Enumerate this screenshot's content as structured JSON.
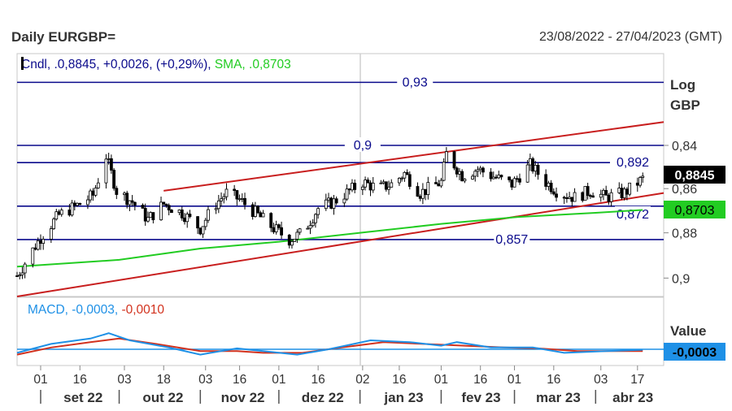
{
  "header": {
    "title": "Daily EURGBP=",
    "date_range": "23/08/2022 - 27/04/2023 (GMT)"
  },
  "price_panel": {
    "legend": {
      "cndl": "Cndl, .0,8845, ",
      "change": "+0,0026, (+0,29%), ",
      "sma": "SMA, .0,8703"
    },
    "axis_title_1": "Log",
    "axis_title_2": "GBP",
    "y_ticks": [
      "0,9",
      "0,88",
      "0,86",
      "0,84"
    ],
    "last_price_badge": "0,8845",
    "sma_badge": "0,8703"
  },
  "macd_panel": {
    "legend": {
      "macd": "MACD, -0,0003, ",
      "signal": "-0,0010"
    },
    "axis_title": "Value",
    "value_badge": "-0,0003"
  },
  "x_axis": {
    "day_ticks": [
      "01",
      "16",
      "03",
      "18",
      "03",
      "16",
      "01",
      "16",
      "02",
      "16",
      "01",
      "16",
      "01",
      "16",
      "03",
      "17"
    ],
    "months": [
      "set 22",
      "out 22",
      "nov 22",
      "dez 22",
      "jan 23",
      "fev 23",
      "mar 23",
      "abr 23"
    ]
  },
  "colors": {
    "candle": "#000000",
    "sma": "#22cc22",
    "hline": "#0a0a8c",
    "channel": "#c81e1e",
    "macd": "#1e90e6",
    "signal": "#d2321e",
    "badge_last": "#000000",
    "badge_sma": "#22cc22",
    "badge_macd": "#1e90e6"
  },
  "chart_data": [
    {
      "type": "line",
      "series_kind": "candlestick",
      "title": "Daily EURGBP=",
      "date_range": "23/08/2022 - 27/04/2023 (GMT)",
      "ylabel": "GBP",
      "yscale": "log",
      "ylim": [
        0.832,
        0.944
      ],
      "y_ticks": [
        0.84,
        0.86,
        0.88,
        0.9
      ],
      "last_close": 0.8845,
      "change": 0.0026,
      "change_pct": 0.29,
      "sma_last": 0.8703,
      "horizontal_levels": [
        {
          "label": "0,93",
          "value": 0.93
        },
        {
          "label": "0,9",
          "value": 0.9
        },
        {
          "label": "0,892",
          "value": 0.892
        },
        {
          "label": "0,872",
          "value": 0.872
        },
        {
          "label": "0,857",
          "value": 0.857
        }
      ],
      "channel_lines": [
        {
          "from": [
            "2022-08-23",
            0.832
          ],
          "to": [
            "2023-04-27",
            0.878
          ]
        },
        {
          "from": [
            "2022-10-18",
            0.879
          ],
          "to": [
            "2023-04-27",
            0.911
          ]
        }
      ],
      "close_path": [
        {
          "date": "2022-08-23",
          "close": 0.841
        },
        {
          "date": "2022-09-01",
          "close": 0.858
        },
        {
          "date": "2022-09-08",
          "close": 0.868
        },
        {
          "date": "2022-09-16",
          "close": 0.873
        },
        {
          "date": "2022-09-21",
          "close": 0.877
        },
        {
          "date": "2022-09-26",
          "close": 0.895,
          "high": 0.917
        },
        {
          "date": "2022-09-30",
          "close": 0.879
        },
        {
          "date": "2022-10-06",
          "close": 0.874
        },
        {
          "date": "2022-10-12",
          "close": 0.866
        },
        {
          "date": "2022-10-18",
          "close": 0.873
        },
        {
          "date": "2022-10-25",
          "close": 0.869
        },
        {
          "date": "2022-11-01",
          "close": 0.862
        },
        {
          "date": "2022-11-06",
          "close": 0.872
        },
        {
          "date": "2022-11-11",
          "close": 0.878
        },
        {
          "date": "2022-11-16",
          "close": 0.875
        },
        {
          "date": "2022-11-22",
          "close": 0.869
        },
        {
          "date": "2022-11-29",
          "close": 0.862
        },
        {
          "date": "2022-12-05",
          "close": 0.857
        },
        {
          "date": "2022-12-10",
          "close": 0.86
        },
        {
          "date": "2022-12-16",
          "close": 0.871
        },
        {
          "date": "2022-12-22",
          "close": 0.874
        },
        {
          "date": "2023-01-02",
          "close": 0.883
        },
        {
          "date": "2023-01-08",
          "close": 0.88
        },
        {
          "date": "2023-01-13",
          "close": 0.882
        },
        {
          "date": "2023-01-18",
          "close": 0.887
        },
        {
          "date": "2023-01-24",
          "close": 0.878
        },
        {
          "date": "2023-02-01",
          "close": 0.883
        },
        {
          "date": "2023-02-03",
          "close": 0.896
        },
        {
          "date": "2023-02-09",
          "close": 0.886
        },
        {
          "date": "2023-02-15",
          "close": 0.889
        },
        {
          "date": "2023-02-20",
          "close": 0.886
        },
        {
          "date": "2023-02-28",
          "close": 0.882
        },
        {
          "date": "2023-03-07",
          "close": 0.891
        },
        {
          "date": "2023-03-13",
          "close": 0.883
        },
        {
          "date": "2023-03-18",
          "close": 0.878
        },
        {
          "date": "2023-03-24",
          "close": 0.876
        },
        {
          "date": "2023-03-30",
          "close": 0.879
        },
        {
          "date": "2023-04-05",
          "close": 0.876
        },
        {
          "date": "2023-04-12",
          "close": 0.878
        },
        {
          "date": "2023-04-19",
          "close": 0.8845
        }
      ],
      "sma_path": [
        {
          "date": "2022-08-23",
          "value": 0.845
        },
        {
          "date": "2022-10-01",
          "value": 0.848
        },
        {
          "date": "2022-11-01",
          "value": 0.853
        },
        {
          "date": "2022-12-01",
          "value": 0.856
        },
        {
          "date": "2023-01-01",
          "value": 0.86
        },
        {
          "date": "2023-02-01",
          "value": 0.864
        },
        {
          "date": "2023-03-01",
          "value": 0.867
        },
        {
          "date": "2023-04-01",
          "value": 0.869
        },
        {
          "date": "2023-04-19",
          "value": 0.8703
        }
      ]
    },
    {
      "type": "line",
      "title": "MACD",
      "ylabel": "Value",
      "macd_last": -0.0003,
      "signal_last": -0.001,
      "series": [
        {
          "name": "MACD",
          "values": [
            {
              "date": "2022-08-23",
              "value": -0.002
            },
            {
              "date": "2022-09-05",
              "value": 0.003
            },
            {
              "date": "2022-09-20",
              "value": 0.006
            },
            {
              "date": "2022-09-27",
              "value": 0.009
            },
            {
              "date": "2022-10-05",
              "value": 0.005
            },
            {
              "date": "2022-10-20",
              "value": 0.001
            },
            {
              "date": "2022-11-01",
              "value": -0.003
            },
            {
              "date": "2022-11-15",
              "value": 0.0005
            },
            {
              "date": "2022-11-25",
              "value": -0.001
            },
            {
              "date": "2022-12-08",
              "value": -0.003
            },
            {
              "date": "2022-12-20",
              "value": 0.0
            },
            {
              "date": "2023-01-05",
              "value": 0.005
            },
            {
              "date": "2023-01-20",
              "value": 0.004
            },
            {
              "date": "2023-02-01",
              "value": 0.002
            },
            {
              "date": "2023-02-07",
              "value": 0.004
            },
            {
              "date": "2023-02-20",
              "value": 0.001
            },
            {
              "date": "2023-03-08",
              "value": 0.001
            },
            {
              "date": "2023-03-20",
              "value": -0.002
            },
            {
              "date": "2023-04-05",
              "value": -0.001
            },
            {
              "date": "2023-04-19",
              "value": -0.0003
            }
          ]
        },
        {
          "name": "Signal",
          "values": [
            {
              "date": "2022-08-23",
              "value": -0.003
            },
            {
              "date": "2022-09-05",
              "value": 0.001
            },
            {
              "date": "2022-09-20",
              "value": 0.004
            },
            {
              "date": "2022-10-01",
              "value": 0.006
            },
            {
              "date": "2022-10-15",
              "value": 0.003
            },
            {
              "date": "2022-11-01",
              "value": -0.001
            },
            {
              "date": "2022-11-15",
              "value": -0.001
            },
            {
              "date": "2022-11-25",
              "value": -0.002
            },
            {
              "date": "2022-12-10",
              "value": -0.002
            },
            {
              "date": "2022-12-25",
              "value": 0.001
            },
            {
              "date": "2023-01-10",
              "value": 0.004
            },
            {
              "date": "2023-01-25",
              "value": 0.003
            },
            {
              "date": "2023-02-10",
              "value": 0.002
            },
            {
              "date": "2023-02-25",
              "value": 0.001
            },
            {
              "date": "2023-03-10",
              "value": 0.0005
            },
            {
              "date": "2023-03-25",
              "value": -0.001
            },
            {
              "date": "2023-04-10",
              "value": -0.001
            },
            {
              "date": "2023-04-19",
              "value": -0.001
            }
          ]
        }
      ]
    }
  ]
}
